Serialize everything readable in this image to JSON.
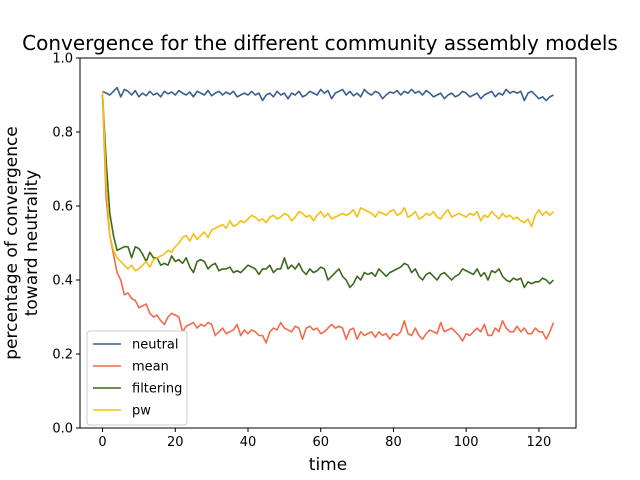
{
  "chart_data": {
    "type": "line",
    "title": "Convergence for the different community assembly models",
    "xlabel": "time",
    "ylabel": [
      "percentage of convergence",
      "toward neutrality"
    ],
    "xlim": [
      -6.2,
      130.2
    ],
    "ylim": [
      0.0,
      1.0
    ],
    "xticks": [
      0,
      20,
      40,
      60,
      80,
      100,
      120
    ],
    "yticks": [
      0.0,
      0.2,
      0.4,
      0.6,
      0.8,
      1.0
    ],
    "xtick_labels": [
      "0",
      "20",
      "40",
      "60",
      "80",
      "100",
      "120"
    ],
    "ytick_labels": [
      "0.0",
      "0.2",
      "0.4",
      "0.6",
      "0.8",
      "1.0"
    ],
    "grid": false,
    "legend_position": "lower-left",
    "series": [
      {
        "name": "neutral",
        "color": "#3a5f8f",
        "x": [
          0,
          1,
          2,
          3,
          4,
          5,
          6,
          7,
          8,
          9,
          10,
          11,
          12,
          13,
          14,
          15,
          16,
          17,
          18,
          19,
          20,
          21,
          22,
          23,
          24,
          25,
          26,
          27,
          28,
          29,
          30,
          31,
          32,
          33,
          34,
          35,
          36,
          37,
          38,
          39,
          40,
          41,
          42,
          43,
          44,
          45,
          46,
          47,
          48,
          49,
          50,
          51,
          52,
          53,
          54,
          55,
          56,
          57,
          58,
          59,
          60,
          61,
          62,
          63,
          64,
          65,
          66,
          67,
          68,
          69,
          70,
          71,
          72,
          73,
          74,
          75,
          76,
          77,
          78,
          79,
          80,
          81,
          82,
          83,
          84,
          85,
          86,
          87,
          88,
          89,
          90,
          91,
          92,
          93,
          94,
          95,
          96,
          97,
          98,
          99,
          100,
          101,
          102,
          103,
          104,
          105,
          106,
          107,
          108,
          109,
          110,
          111,
          112,
          113,
          114,
          115,
          116,
          117,
          118,
          119,
          120,
          121,
          122,
          123,
          124
        ],
        "values": [
          0.91,
          0.905,
          0.9,
          0.91,
          0.92,
          0.895,
          0.915,
          0.91,
          0.9,
          0.912,
          0.895,
          0.905,
          0.898,
          0.91,
          0.9,
          0.905,
          0.895,
          0.91,
          0.903,
          0.908,
          0.9,
          0.912,
          0.905,
          0.9,
          0.908,
          0.895,
          0.91,
          0.905,
          0.9,
          0.912,
          0.898,
          0.905,
          0.91,
          0.9,
          0.908,
          0.902,
          0.91,
          0.895,
          0.9,
          0.905,
          0.9,
          0.91,
          0.9,
          0.905,
          0.885,
          0.9,
          0.905,
          0.895,
          0.91,
          0.9,
          0.905,
          0.89,
          0.905,
          0.9,
          0.91,
          0.895,
          0.9,
          0.91,
          0.905,
          0.9,
          0.915,
          0.905,
          0.912,
          0.89,
          0.905,
          0.91,
          0.915,
          0.9,
          0.91,
          0.898,
          0.905,
          0.895,
          0.915,
          0.905,
          0.9,
          0.91,
          0.905,
          0.89,
          0.9,
          0.908,
          0.905,
          0.912,
          0.9,
          0.91,
          0.905,
          0.915,
          0.905,
          0.91,
          0.9,
          0.912,
          0.905,
          0.895,
          0.9,
          0.905,
          0.89,
          0.9,
          0.905,
          0.895,
          0.9,
          0.91,
          0.905,
          0.895,
          0.9,
          0.905,
          0.89,
          0.9,
          0.905,
          0.91,
          0.895,
          0.905,
          0.9,
          0.915,
          0.905,
          0.91,
          0.905,
          0.91,
          0.885,
          0.905,
          0.91,
          0.9,
          0.89,
          0.895,
          0.885,
          0.895,
          0.9
        ]
      },
      {
        "name": "mean",
        "color": "#f26b4c",
        "x": [
          0,
          1,
          2,
          3,
          4,
          5,
          6,
          7,
          8,
          9,
          10,
          11,
          12,
          13,
          14,
          15,
          16,
          17,
          18,
          19,
          20,
          21,
          22,
          23,
          24,
          25,
          26,
          27,
          28,
          29,
          30,
          31,
          32,
          33,
          34,
          35,
          36,
          37,
          38,
          39,
          40,
          41,
          42,
          43,
          44,
          45,
          46,
          47,
          48,
          49,
          50,
          51,
          52,
          53,
          54,
          55,
          56,
          57,
          58,
          59,
          60,
          61,
          62,
          63,
          64,
          65,
          66,
          67,
          68,
          69,
          70,
          71,
          72,
          73,
          74,
          75,
          76,
          77,
          78,
          79,
          80,
          81,
          82,
          83,
          84,
          85,
          86,
          87,
          88,
          89,
          90,
          91,
          92,
          93,
          94,
          95,
          96,
          97,
          98,
          99,
          100,
          101,
          102,
          103,
          104,
          105,
          106,
          107,
          108,
          109,
          110,
          111,
          112,
          113,
          114,
          115,
          116,
          117,
          118,
          119,
          120,
          121,
          122,
          123,
          124
        ],
        "values": [
          0.9,
          0.62,
          0.52,
          0.47,
          0.42,
          0.4,
          0.36,
          0.365,
          0.35,
          0.345,
          0.325,
          0.33,
          0.335,
          0.31,
          0.3,
          0.305,
          0.29,
          0.28,
          0.3,
          0.31,
          0.305,
          0.3,
          0.26,
          0.275,
          0.28,
          0.285,
          0.27,
          0.28,
          0.275,
          0.285,
          0.28,
          0.25,
          0.26,
          0.27,
          0.255,
          0.26,
          0.265,
          0.28,
          0.25,
          0.265,
          0.255,
          0.265,
          0.26,
          0.25,
          0.25,
          0.23,
          0.26,
          0.27,
          0.265,
          0.285,
          0.27,
          0.265,
          0.26,
          0.275,
          0.27,
          0.24,
          0.27,
          0.275,
          0.265,
          0.27,
          0.255,
          0.26,
          0.27,
          0.28,
          0.27,
          0.275,
          0.27,
          0.24,
          0.265,
          0.27,
          0.24,
          0.26,
          0.25,
          0.255,
          0.26,
          0.245,
          0.26,
          0.25,
          0.255,
          0.24,
          0.255,
          0.25,
          0.26,
          0.29,
          0.255,
          0.25,
          0.27,
          0.25,
          0.24,
          0.255,
          0.265,
          0.26,
          0.255,
          0.285,
          0.26,
          0.265,
          0.27,
          0.26,
          0.25,
          0.235,
          0.255,
          0.25,
          0.26,
          0.27,
          0.26,
          0.28,
          0.25,
          0.25,
          0.27,
          0.26,
          0.29,
          0.27,
          0.26,
          0.26,
          0.275,
          0.26,
          0.27,
          0.255,
          0.255,
          0.27,
          0.26,
          0.26,
          0.24,
          0.26,
          0.285
        ]
      },
      {
        "name": "filtering",
        "color": "#3b6a1e",
        "x": [
          0,
          1,
          2,
          3,
          4,
          5,
          6,
          7,
          8,
          9,
          10,
          11,
          12,
          13,
          14,
          15,
          16,
          17,
          18,
          19,
          20,
          21,
          22,
          23,
          24,
          25,
          26,
          27,
          28,
          29,
          30,
          31,
          32,
          33,
          34,
          35,
          36,
          37,
          38,
          39,
          40,
          41,
          42,
          43,
          44,
          45,
          46,
          47,
          48,
          49,
          50,
          51,
          52,
          53,
          54,
          55,
          56,
          57,
          58,
          59,
          60,
          61,
          62,
          63,
          64,
          65,
          66,
          67,
          68,
          69,
          70,
          71,
          72,
          73,
          74,
          75,
          76,
          77,
          78,
          79,
          80,
          81,
          82,
          83,
          84,
          85,
          86,
          87,
          88,
          89,
          90,
          91,
          92,
          93,
          94,
          95,
          96,
          97,
          98,
          99,
          100,
          101,
          102,
          103,
          104,
          105,
          106,
          107,
          108,
          109,
          110,
          111,
          112,
          113,
          114,
          115,
          116,
          117,
          118,
          119,
          120,
          121,
          122,
          123,
          124
        ],
        "values": [
          0.9,
          0.72,
          0.58,
          0.52,
          0.48,
          0.485,
          0.49,
          0.49,
          0.46,
          0.49,
          0.485,
          0.47,
          0.45,
          0.475,
          0.46,
          0.46,
          0.44,
          0.445,
          0.44,
          0.465,
          0.45,
          0.455,
          0.445,
          0.46,
          0.435,
          0.42,
          0.45,
          0.455,
          0.45,
          0.43,
          0.44,
          0.445,
          0.425,
          0.43,
          0.43,
          0.435,
          0.42,
          0.425,
          0.42,
          0.43,
          0.44,
          0.435,
          0.43,
          0.415,
          0.43,
          0.43,
          0.44,
          0.42,
          0.43,
          0.43,
          0.46,
          0.43,
          0.44,
          0.43,
          0.445,
          0.425,
          0.415,
          0.43,
          0.42,
          0.425,
          0.435,
          0.43,
          0.4,
          0.41,
          0.42,
          0.43,
          0.41,
          0.4,
          0.38,
          0.39,
          0.41,
          0.4,
          0.42,
          0.415,
          0.42,
          0.41,
          0.43,
          0.42,
          0.41,
          0.42,
          0.425,
          0.43,
          0.435,
          0.445,
          0.44,
          0.42,
          0.43,
          0.41,
          0.4,
          0.415,
          0.42,
          0.41,
          0.4,
          0.415,
          0.42,
          0.41,
          0.4,
          0.41,
          0.415,
          0.43,
          0.425,
          0.42,
          0.415,
          0.43,
          0.41,
          0.42,
          0.4,
          0.425,
          0.42,
          0.43,
          0.41,
          0.4,
          0.395,
          0.405,
          0.4,
          0.405,
          0.38,
          0.395,
          0.39,
          0.395,
          0.395,
          0.405,
          0.4,
          0.39,
          0.4
        ]
      },
      {
        "name": "pw",
        "color": "#f5bf12",
        "x": [
          0,
          1,
          2,
          3,
          4,
          5,
          6,
          7,
          8,
          9,
          10,
          11,
          12,
          13,
          14,
          15,
          16,
          17,
          18,
          19,
          20,
          21,
          22,
          23,
          24,
          25,
          26,
          27,
          28,
          29,
          30,
          31,
          32,
          33,
          34,
          35,
          36,
          37,
          38,
          39,
          40,
          41,
          42,
          43,
          44,
          45,
          46,
          47,
          48,
          49,
          50,
          51,
          52,
          53,
          54,
          55,
          56,
          57,
          58,
          59,
          60,
          61,
          62,
          63,
          64,
          65,
          66,
          67,
          68,
          69,
          70,
          71,
          72,
          73,
          74,
          75,
          76,
          77,
          78,
          79,
          80,
          81,
          82,
          83,
          84,
          85,
          86,
          87,
          88,
          89,
          90,
          91,
          92,
          93,
          94,
          95,
          96,
          97,
          98,
          99,
          100,
          101,
          102,
          103,
          104,
          105,
          106,
          107,
          108,
          109,
          110,
          111,
          112,
          113,
          114,
          115,
          116,
          117,
          118,
          119,
          120,
          121,
          122,
          123,
          124
        ],
        "values": [
          0.91,
          0.66,
          0.52,
          0.48,
          0.46,
          0.45,
          0.44,
          0.43,
          0.44,
          0.425,
          0.43,
          0.44,
          0.45,
          0.435,
          0.455,
          0.46,
          0.465,
          0.47,
          0.48,
          0.475,
          0.49,
          0.5,
          0.515,
          0.52,
          0.505,
          0.525,
          0.51,
          0.52,
          0.53,
          0.515,
          0.535,
          0.54,
          0.545,
          0.55,
          0.54,
          0.56,
          0.545,
          0.55,
          0.56,
          0.555,
          0.565,
          0.575,
          0.57,
          0.56,
          0.565,
          0.555,
          0.57,
          0.575,
          0.565,
          0.57,
          0.58,
          0.575,
          0.56,
          0.57,
          0.585,
          0.58,
          0.57,
          0.575,
          0.56,
          0.575,
          0.585,
          0.57,
          0.58,
          0.565,
          0.57,
          0.575,
          0.58,
          0.575,
          0.58,
          0.59,
          0.57,
          0.595,
          0.59,
          0.585,
          0.58,
          0.57,
          0.585,
          0.58,
          0.575,
          0.585,
          0.59,
          0.575,
          0.58,
          0.595,
          0.57,
          0.575,
          0.585,
          0.565,
          0.57,
          0.58,
          0.575,
          0.585,
          0.57,
          0.565,
          0.58,
          0.59,
          0.57,
          0.575,
          0.58,
          0.575,
          0.57,
          0.58,
          0.575,
          0.585,
          0.56,
          0.575,
          0.57,
          0.585,
          0.575,
          0.565,
          0.58,
          0.57,
          0.575,
          0.565,
          0.57,
          0.56,
          0.555,
          0.565,
          0.545,
          0.575,
          0.59,
          0.575,
          0.585,
          0.575,
          0.585
        ]
      }
    ]
  }
}
